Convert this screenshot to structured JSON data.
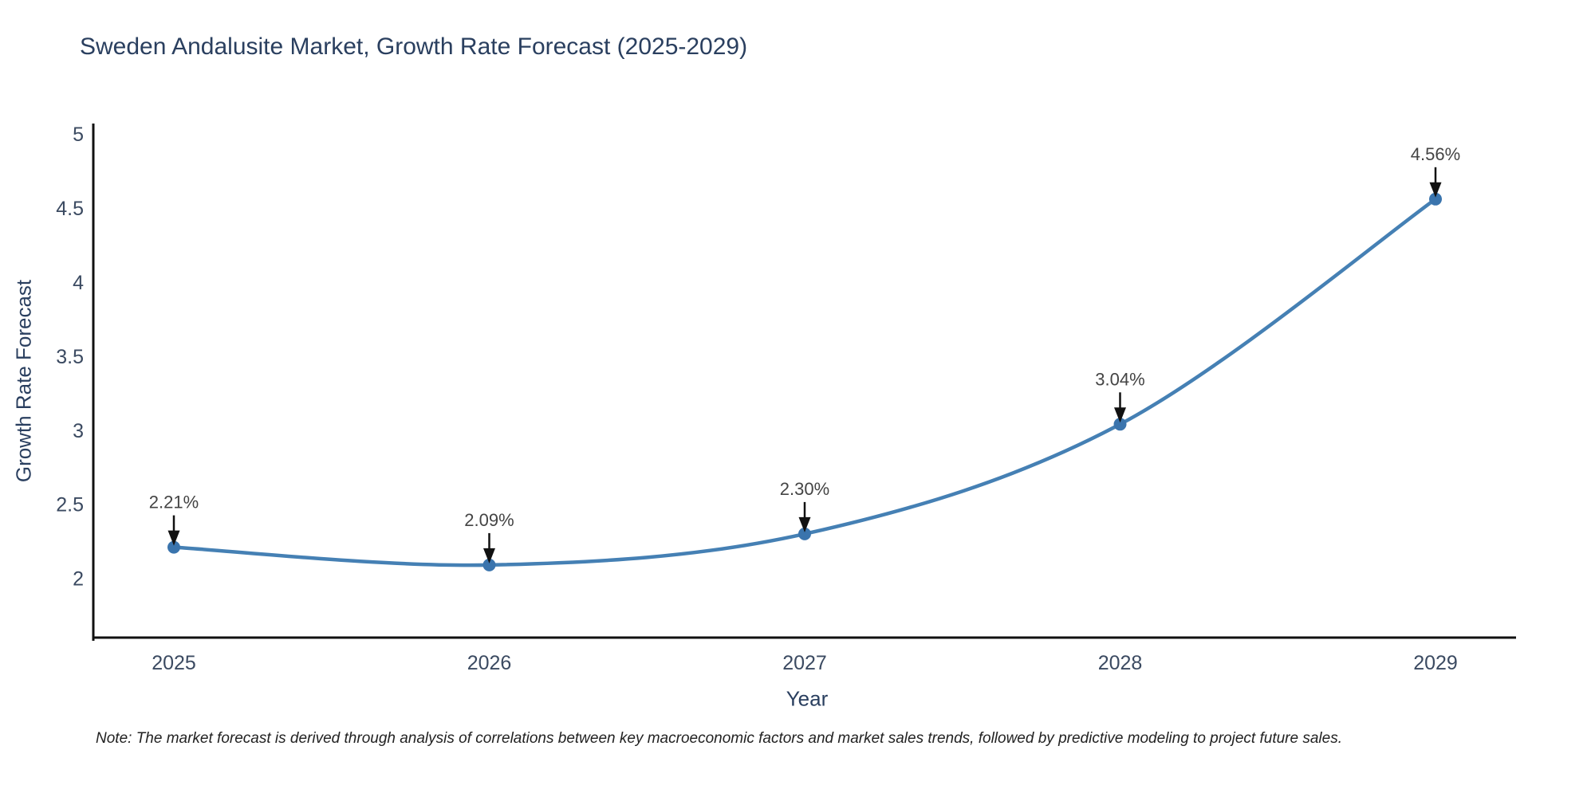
{
  "title": "Sweden Andalusite Market, Growth Rate Forecast (2025-2029)",
  "note": "Note: The market forecast is derived through analysis of correlations between key macroeconomic factors and market sales trends, followed by predictive modeling to project future sales.",
  "chart_data": {
    "type": "line",
    "title": "Sweden Andalusite Market, Growth Rate Forecast (2025-2029)",
    "xlabel": "Year",
    "ylabel": "Growth Rate Forecast",
    "x": [
      "2025",
      "2026",
      "2027",
      "2028",
      "2029"
    ],
    "values": [
      2.21,
      2.09,
      2.3,
      3.04,
      4.56
    ],
    "point_labels": [
      "2.21%",
      "2.09%",
      "2.30%",
      "3.04%",
      "4.56%"
    ],
    "yticks": [
      "2",
      "2.5",
      "3",
      "3.5",
      "4",
      "4.5",
      "5"
    ],
    "ylim": [
      1.6,
      5.07
    ],
    "line_shape": "spline",
    "grid": "off",
    "legend": "none",
    "marker_style": "circle"
  },
  "colors": {
    "background": "#ffffff",
    "line": "#4580b4",
    "marker": "#3a74ad",
    "axis": "#111111",
    "arrow": "#111111",
    "title_text": "#2a3f5f",
    "axis_title_text": "#2a3f5f",
    "tick_text": "#3b4a61",
    "annotation_text": "#444444",
    "note_text": "#222222"
  }
}
